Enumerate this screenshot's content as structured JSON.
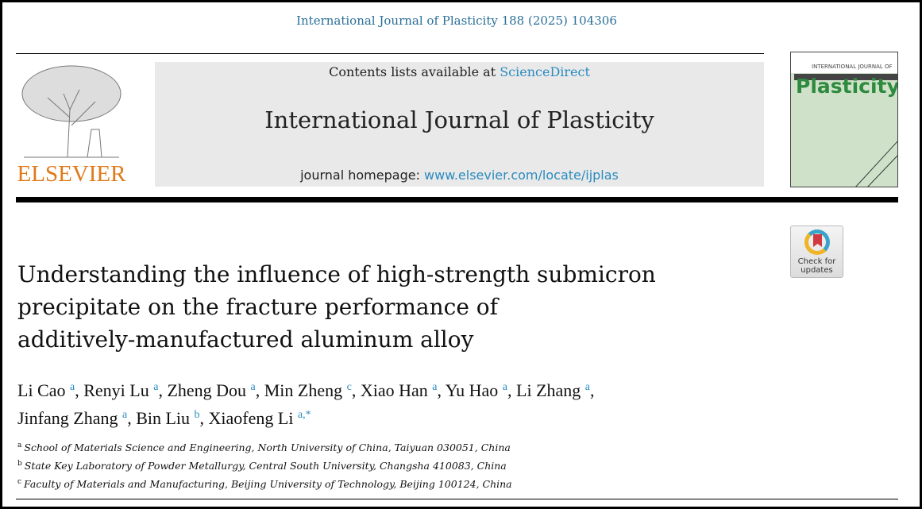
{
  "citation": "International Journal of Plasticity 188 (2025) 104306",
  "publisher_logo": "ELSEVIER",
  "header": {
    "contents_prefix": "Contents lists available at ",
    "contents_link": "ScienceDirect",
    "journal_name": "International Journal of Plasticity",
    "homepage_prefix": "journal homepage: ",
    "homepage_link": "www.elsevier.com/locate/ijplas"
  },
  "cover": {
    "line1": "INTERNATIONAL JOURNAL OF",
    "line2": "Plasticity"
  },
  "check_updates": {
    "line1": "Check for",
    "line2": "updates"
  },
  "title": [
    "Understanding the influence of high-strength submicron",
    "precipitate on the fracture performance of",
    "additively-manufactured aluminum alloy"
  ],
  "authors": [
    {
      "name": "Li Cao",
      "aff": "a"
    },
    {
      "name": "Renyi Lu",
      "aff": "a"
    },
    {
      "name": "Zheng Dou",
      "aff": "a"
    },
    {
      "name": "Min Zheng",
      "aff": "c"
    },
    {
      "name": "Xiao Han",
      "aff": "a"
    },
    {
      "name": "Yu Hao",
      "aff": "a"
    },
    {
      "name": "Li Zhang",
      "aff": "a"
    },
    {
      "name": "Jinfang Zhang",
      "aff": "a"
    },
    {
      "name": "Bin Liu",
      "aff": "b"
    },
    {
      "name": "Xiaofeng Li",
      "aff": "a,*"
    }
  ],
  "affiliations": [
    {
      "key": "a",
      "text": "School of Materials Science and Engineering, North University of China, Taiyuan 030051, China"
    },
    {
      "key": "b",
      "text": "State Key Laboratory of Powder Metallurgy, Central South University, Changsha 410083, China"
    },
    {
      "key": "c",
      "text": "Faculty of Materials and Manufacturing, Beijing University of Technology, Beijing 100124, China"
    }
  ]
}
